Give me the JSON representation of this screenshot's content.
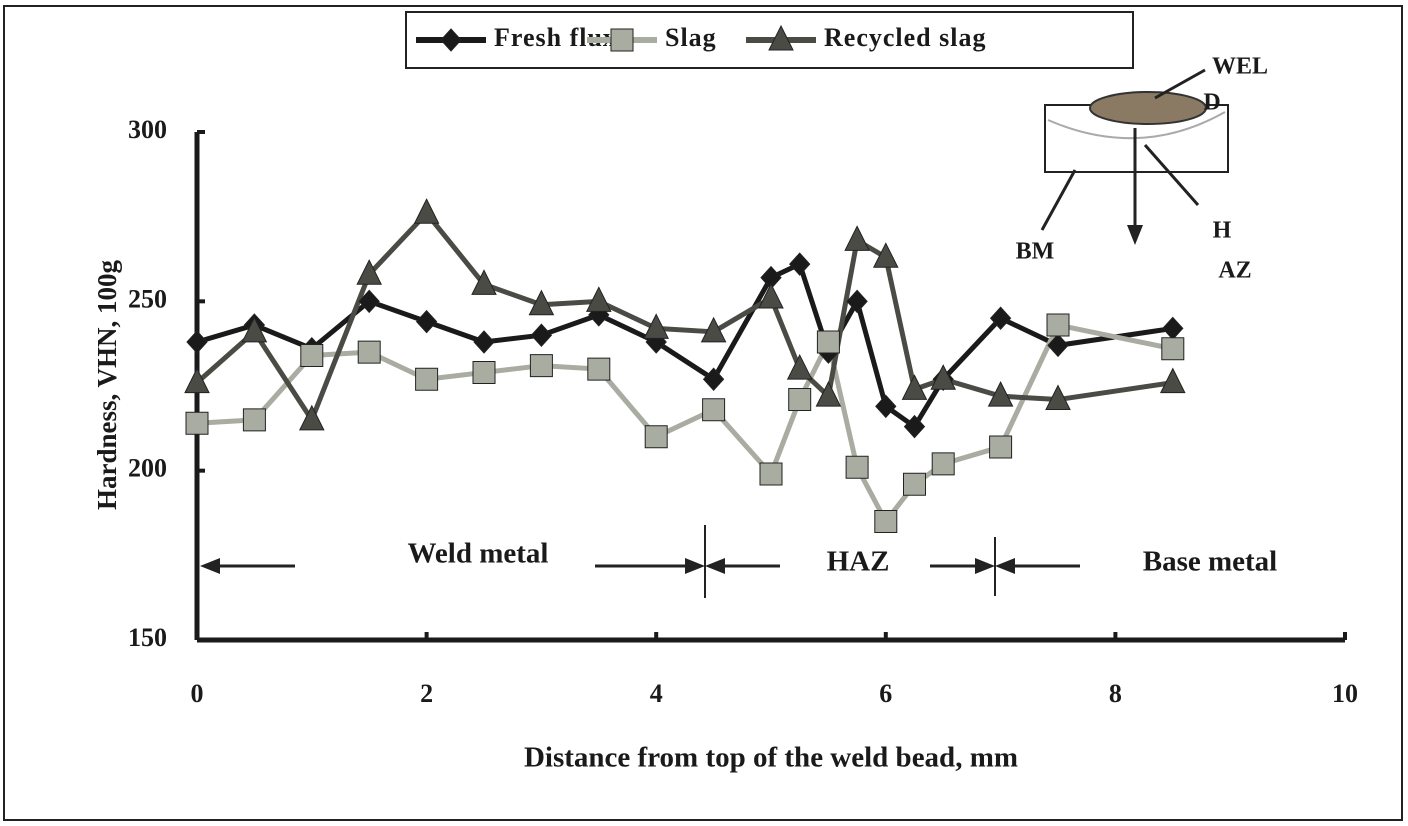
{
  "chart_data": {
    "type": "line",
    "x_label": "Distance from top of the weld bead, mm",
    "y_label": "Hardness, VHN, 100g",
    "x": [
      0,
      0.5,
      1,
      1.5,
      2,
      2.5,
      3,
      3.5,
      4,
      4.5,
      5,
      5.25,
      5.5,
      5.75,
      6,
      6.25,
      6.5,
      7,
      7.5,
      8.5
    ],
    "series": [
      {
        "name": "Fresh flux",
        "color": "#1a1a1a",
        "marker": "diamond",
        "values": [
          238,
          243,
          236,
          250,
          244,
          238,
          240,
          246,
          238,
          227,
          257,
          261,
          235,
          250,
          219,
          213,
          227,
          245,
          237,
          242
        ]
      },
      {
        "name": "Slag",
        "color": "#a9aca1",
        "marker": "square",
        "values": [
          214,
          215,
          234,
          235,
          227,
          229,
          231,
          230,
          210,
          218,
          199,
          221,
          238,
          201,
          185,
          196,
          202,
          207,
          243,
          236
        ]
      },
      {
        "name": "Recycled slag",
        "color": "#4b4b45",
        "marker": "triangle",
        "values": [
          226,
          241,
          215,
          258,
          276,
          255,
          249,
          250,
          242,
          241,
          251,
          230,
          222,
          268,
          263,
          224,
          227,
          222,
          221,
          226
        ]
      }
    ],
    "xlim": [
      0,
      10
    ],
    "xticks": [
      0,
      2,
      4,
      6,
      8,
      10
    ],
    "ylim": [
      150,
      300
    ],
    "yticks": [
      150,
      200,
      250,
      300
    ],
    "legend": "top",
    "annotations": [
      "Weld metal",
      "HAZ",
      "Base metal",
      "WEL",
      "D",
      "BM",
      "H",
      "AZ"
    ]
  }
}
